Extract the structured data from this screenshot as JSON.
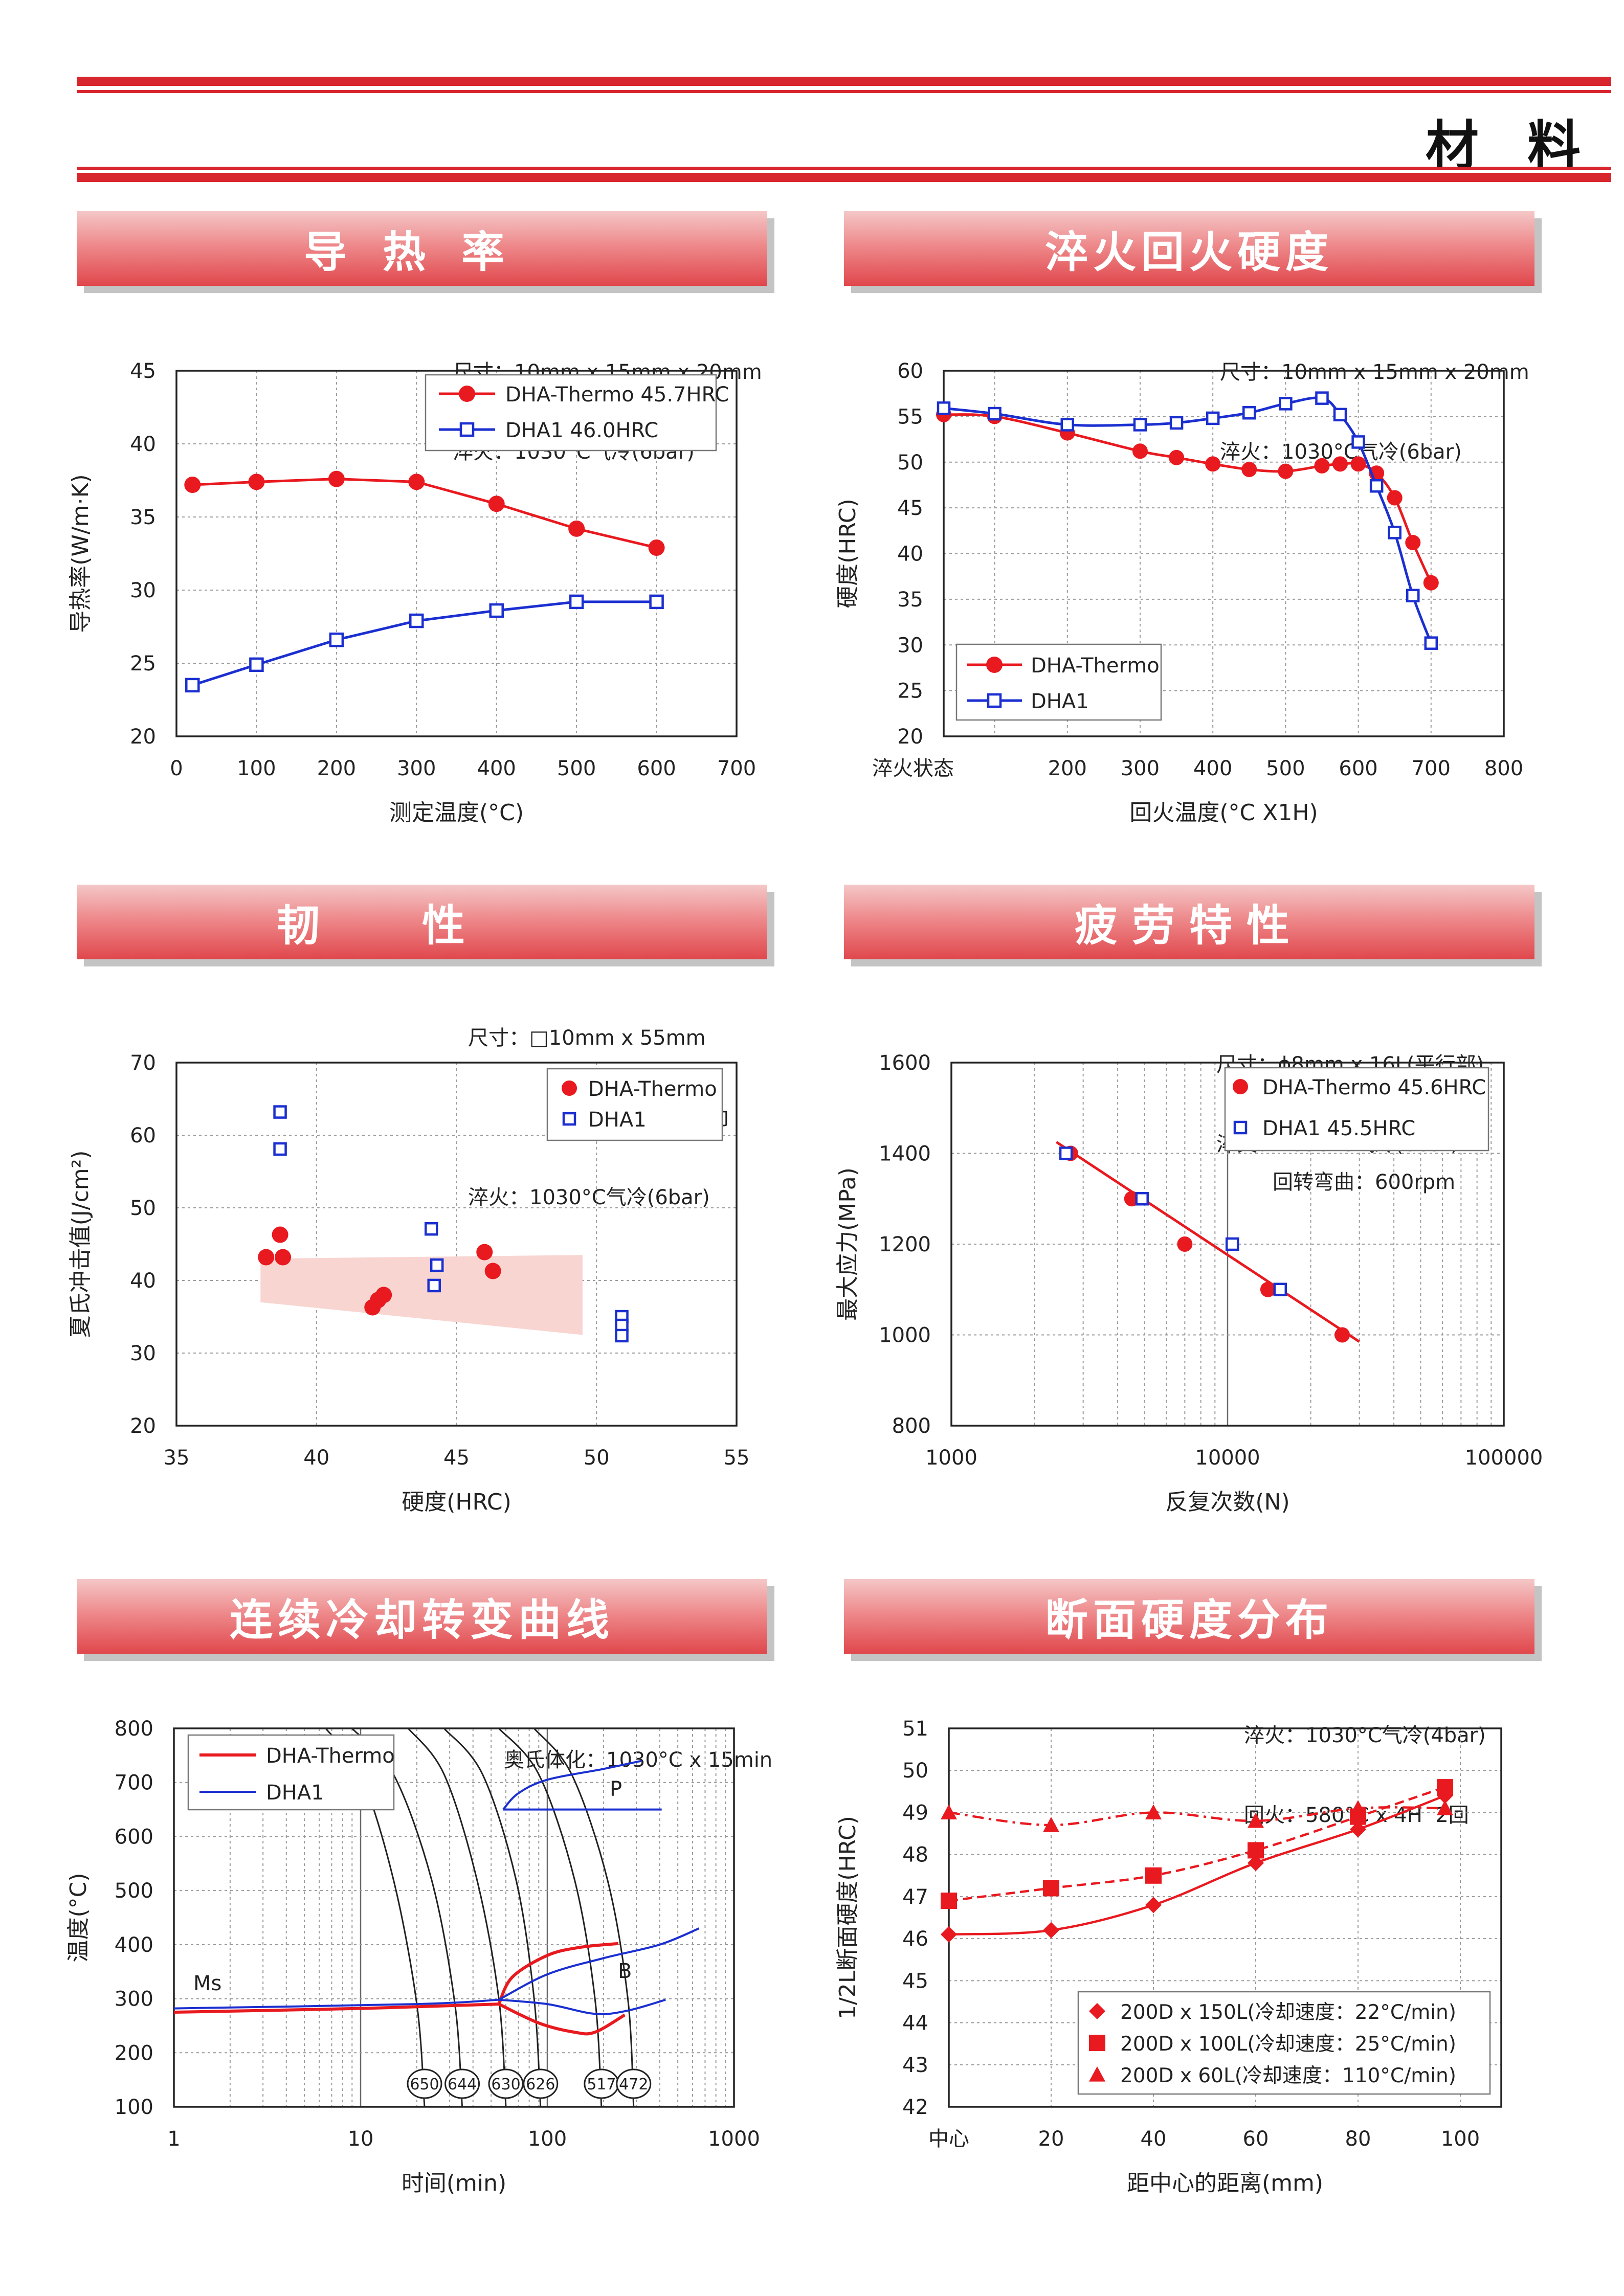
{
  "page": {
    "title": "材料"
  },
  "sections": [
    {
      "id": "thermal",
      "title": "导热率",
      "spec": [
        "尺寸：10mm x 15mm x 20mm",
        "淬火：1030°C气冷(6bar)"
      ]
    },
    {
      "id": "hardness",
      "title": "淬火回火硬度",
      "spec": [
        "尺寸：10mm x 15mm x 20mm",
        "淬火：1030°C气冷(6bar)"
      ]
    },
    {
      "id": "toughness",
      "title": "韧性",
      "spec": [
        "尺寸：□10mm x 55mm",
        "2mmU缺口　L方向",
        "淬火：1030°C气冷(6bar)"
      ]
    },
    {
      "id": "fatigue",
      "title": "疲劳特性",
      "spec": [
        "尺寸：ϕ8mm x 16L(平行部)",
        "淬火：1030°C气冷(6bar)"
      ]
    },
    {
      "id": "cct",
      "title": "连续冷却转变曲线",
      "spec": [
        "奥氏体化：1030°C x 15min"
      ]
    },
    {
      "id": "section",
      "title": "断面硬度分布",
      "spec": [
        "淬火：1030°C气冷(4bar)",
        "回火：580°C x 4H  2回"
      ]
    }
  ],
  "colors": {
    "red": "#e8191f",
    "blue": "#1b2fd0",
    "accent": "#d8262e"
  },
  "chart_data": [
    {
      "id": "thermal",
      "type": "line",
      "xlabel": "测定温度(°C)",
      "ylabel": "导热率(W/m·K)",
      "xlim": [
        0,
        700
      ],
      "ylim": [
        20,
        45
      ],
      "xticks": [
        0,
        100,
        200,
        300,
        400,
        500,
        600,
        700
      ],
      "yticks": [
        20,
        25,
        30,
        35,
        40,
        45
      ],
      "legend_position": "top-right",
      "grid": true,
      "series": [
        {
          "name": "DHA-Thermo  45.7HRC",
          "color": "#e8191f",
          "marker": "circle",
          "points": [
            [
              20,
              37.2
            ],
            [
              100,
              37.4
            ],
            [
              200,
              37.6
            ],
            [
              300,
              37.4
            ],
            [
              400,
              35.9
            ],
            [
              500,
              34.2
            ],
            [
              600,
              32.9
            ]
          ]
        },
        {
          "name": "DHA1  46.0HRC",
          "color": "#1b2fd0",
          "marker": "square",
          "points": [
            [
              20,
              23.5
            ],
            [
              100,
              24.9
            ],
            [
              200,
              26.6
            ],
            [
              300,
              27.9
            ],
            [
              400,
              28.6
            ],
            [
              500,
              29.2
            ],
            [
              600,
              29.2
            ]
          ]
        }
      ]
    },
    {
      "id": "hardness",
      "type": "line",
      "xlabel": "回火温度(°C X1H)",
      "ylabel": "硬度(HRC)",
      "xlim": [
        30,
        800
      ],
      "ylim": [
        20,
        60
      ],
      "xticks": [
        100,
        200,
        300,
        400,
        500,
        600,
        700,
        800
      ],
      "yticks": [
        20,
        25,
        30,
        35,
        40,
        45,
        50,
        55,
        60
      ],
      "x_first_tick_label": "淬火状态",
      "legend_position": "bottom-left",
      "grid": true,
      "series": [
        {
          "name": "DHA-Thermo",
          "color": "#e8191f",
          "marker": "circle",
          "points": [
            [
              30,
              55.2
            ],
            [
              100,
              55.0
            ],
            [
              200,
              53.2
            ],
            [
              300,
              51.2
            ],
            [
              350,
              50.5
            ],
            [
              400,
              49.8
            ],
            [
              450,
              49.2
            ],
            [
              500,
              49.0
            ],
            [
              550,
              49.6
            ],
            [
              575,
              49.8
            ],
            [
              600,
              49.8
            ],
            [
              625,
              48.8
            ],
            [
              650,
              46.1
            ],
            [
              675,
              41.2
            ],
            [
              700,
              36.8
            ]
          ]
        },
        {
          "name": "DHA1",
          "color": "#1b2fd0",
          "marker": "square",
          "points": [
            [
              30,
              55.9
            ],
            [
              100,
              55.3
            ],
            [
              200,
              54.1
            ],
            [
              300,
              54.1
            ],
            [
              350,
              54.3
            ],
            [
              400,
              54.8
            ],
            [
              450,
              55.4
            ],
            [
              500,
              56.4
            ],
            [
              550,
              57.0
            ],
            [
              575,
              55.2
            ],
            [
              600,
              52.2
            ],
            [
              625,
              47.4
            ],
            [
              650,
              42.3
            ],
            [
              675,
              35.4
            ],
            [
              700,
              30.2
            ]
          ]
        }
      ]
    },
    {
      "id": "toughness",
      "type": "scatter",
      "xlabel": "硬度(HRC)",
      "ylabel": "夏氏冲击值(J/cm²)",
      "xlim": [
        35,
        55
      ],
      "ylim": [
        20,
        70
      ],
      "xticks": [
        35,
        40,
        45,
        50,
        55
      ],
      "yticks": [
        20,
        30,
        40,
        50,
        60,
        70
      ],
      "legend_position": "top-right",
      "grid": true,
      "band": [
        [
          38,
          37.0
        ],
        [
          38,
          43.0
        ],
        [
          49.5,
          43.5
        ],
        [
          49.5,
          32.5
        ]
      ],
      "series": [
        {
          "name": "DHA-Thermo",
          "color": "#e8191f",
          "marker": "circle",
          "points": [
            [
              38.2,
              43.2
            ],
            [
              38.7,
              46.3
            ],
            [
              38.8,
              43.2
            ],
            [
              42.0,
              36.3
            ],
            [
              42.2,
              37.3
            ],
            [
              42.4,
              38.0
            ],
            [
              46.0,
              43.9
            ],
            [
              46.3,
              41.3
            ]
          ]
        },
        {
          "name": "DHA1",
          "color": "#1b2fd0",
          "marker": "square",
          "points": [
            [
              38.7,
              63.2
            ],
            [
              38.7,
              58.1
            ],
            [
              44.1,
              47.1
            ],
            [
              44.2,
              39.3
            ],
            [
              44.3,
              42.1
            ],
            [
              50.9,
              35.0
            ],
            [
              50.9,
              33.8
            ],
            [
              50.9,
              32.4
            ]
          ]
        }
      ]
    },
    {
      "id": "fatigue",
      "type": "scatter",
      "xlabel": "反复次数(N)",
      "ylabel": "最大应力(MPa)",
      "xscale": "log",
      "xlim": [
        1000,
        100000
      ],
      "ylim": [
        800,
        1600
      ],
      "xticks": [
        1000,
        10000,
        100000
      ],
      "yticks": [
        800,
        1000,
        1200,
        1400,
        1600
      ],
      "legend_position": "top-right",
      "grid": true,
      "note": "回转弯曲：600rpm",
      "fit_line": [
        [
          2400,
          1425
        ],
        [
          30000,
          985
        ]
      ],
      "series": [
        {
          "name": "DHA-Thermo  45.6HRC",
          "color": "#e8191f",
          "marker": "circle",
          "points": [
            [
              2700,
              1400
            ],
            [
              4500,
              1300
            ],
            [
              7000,
              1200
            ],
            [
              14000,
              1100
            ],
            [
              26000,
              1000
            ]
          ]
        },
        {
          "name": "DHA1  45.5HRC",
          "color": "#1b2fd0",
          "marker": "square",
          "points": [
            [
              2600,
              1400
            ],
            [
              4900,
              1300
            ],
            [
              10400,
              1200
            ],
            [
              15500,
              1100
            ]
          ]
        }
      ]
    },
    {
      "id": "cct",
      "type": "line",
      "xlabel": "时间(min)",
      "ylabel": "温度(°C)",
      "xscale": "log",
      "xlim": [
        1,
        1000
      ],
      "ylim": [
        100,
        800
      ],
      "xticks": [
        1,
        10,
        100,
        1000
      ],
      "yticks": [
        100,
        200,
        300,
        400,
        500,
        600,
        700,
        800
      ],
      "legend_position": "top-left",
      "grid": true,
      "annotations": [
        "Ms",
        "P",
        "B"
      ],
      "cooling_rate_labels": [
        "650",
        "644",
        "630",
        "626",
        "517",
        "472"
      ],
      "series": [
        {
          "name": "DHA-Thermo",
          "color": "#e8191f",
          "segments": [
            [
              [
                1,
                275
              ],
              [
                10,
                282
              ],
              [
                55,
                290
              ]
            ],
            [
              [
                55,
                290
              ],
              [
                65,
                340
              ],
              [
                100,
                380
              ],
              [
                150,
                395
              ],
              [
                240,
                402
              ]
            ],
            [
              [
                55,
                290
              ],
              [
                90,
                255
              ],
              [
                140,
                238
              ],
              [
                180,
                238
              ],
              [
                260,
                270
              ]
            ]
          ]
        },
        {
          "name": "DHA1",
          "color": "#1b2fd0",
          "segments": [
            [
              [
                1,
                282
              ],
              [
                20,
                290
              ],
              [
                55,
                298
              ]
            ],
            [
              [
                55,
                298
              ],
              [
                100,
                345
              ],
              [
                200,
                375
              ],
              [
                400,
                400
              ],
              [
                650,
                430
              ]
            ],
            [
              [
                55,
                298
              ],
              [
                100,
                290
              ],
              [
                180,
                272
              ],
              [
                270,
                278
              ],
              [
                430,
                298
              ]
            ],
            [
              [
                58,
                650
              ],
              [
                70,
                680
              ],
              [
                100,
                705
              ],
              [
                200,
                725
              ],
              [
                320,
                740
              ]
            ],
            [
              [
                58,
                650
              ],
              [
                410,
                650
              ]
            ]
          ]
        }
      ],
      "cooling_curves": [
        {
          "label": "650",
          "points": [
            [
              6.5,
              800
            ],
            [
              10,
              715
            ],
            [
              15,
              520
            ],
            [
              20,
              290
            ],
            [
              22,
              100
            ]
          ]
        },
        {
          "label": "644",
          "points": [
            [
              9,
              800
            ],
            [
              15,
              715
            ],
            [
              24,
              520
            ],
            [
              32,
              290
            ],
            [
              35,
              100
            ]
          ]
        },
        {
          "label": "630",
          "points": [
            [
              18,
              800
            ],
            [
              28,
              715
            ],
            [
              42,
              520
            ],
            [
              55,
              300
            ],
            [
              60,
              100
            ]
          ]
        },
        {
          "label": "626",
          "points": [
            [
              28,
              800
            ],
            [
              45,
              715
            ],
            [
              68,
              520
            ],
            [
              85,
              300
            ],
            [
              92,
              100
            ]
          ]
        },
        {
          "label": "517",
          "points": [
            [
              55,
              800
            ],
            [
              90,
              715
            ],
            [
              140,
              520
            ],
            [
              180,
              300
            ],
            [
              195,
              100
            ]
          ]
        },
        {
          "label": "472",
          "points": [
            [
              85,
              800
            ],
            [
              135,
              715
            ],
            [
              210,
              520
            ],
            [
              270,
              300
            ],
            [
              290,
              100
            ]
          ]
        }
      ]
    },
    {
      "id": "section",
      "type": "line",
      "xlabel": "距中心的距离(mm)",
      "ylabel": "1/2L断面硬度(HRC)",
      "xlim": [
        0,
        108
      ],
      "ylim": [
        42,
        51
      ],
      "xticks": [
        0,
        20,
        40,
        60,
        80,
        100
      ],
      "yticks": [
        42,
        43,
        44,
        45,
        46,
        47,
        48,
        49,
        50,
        51
      ],
      "x_first_tick_label": "中心",
      "legend_position": "bottom-right",
      "grid": true,
      "series": [
        {
          "name": "200D x 150L(冷却速度：22°C/min)",
          "color": "#e8191f",
          "marker": "diamond",
          "line": "solid",
          "points": [
            [
              0,
              46.1
            ],
            [
              20,
              46.2
            ],
            [
              40,
              46.8
            ],
            [
              60,
              47.8
            ],
            [
              80,
              48.6
            ],
            [
              97,
              49.4
            ]
          ]
        },
        {
          "name": "200D x 100L(冷却速度：25°C/min)",
          "color": "#e8191f",
          "marker": "square",
          "line": "dashed",
          "points": [
            [
              0,
              46.9
            ],
            [
              20,
              47.2
            ],
            [
              40,
              47.5
            ],
            [
              60,
              48.1
            ],
            [
              80,
              48.9
            ],
            [
              97,
              49.6
            ]
          ]
        },
        {
          "name": "200D x  60L(冷却速度：110°C/min)",
          "color": "#e8191f",
          "marker": "triangle",
          "line": "dashdot",
          "points": [
            [
              0,
              49.0
            ],
            [
              20,
              48.7
            ],
            [
              40,
              49.0
            ],
            [
              60,
              48.8
            ],
            [
              80,
              49.1
            ],
            [
              97,
              49.1
            ]
          ]
        }
      ]
    }
  ]
}
